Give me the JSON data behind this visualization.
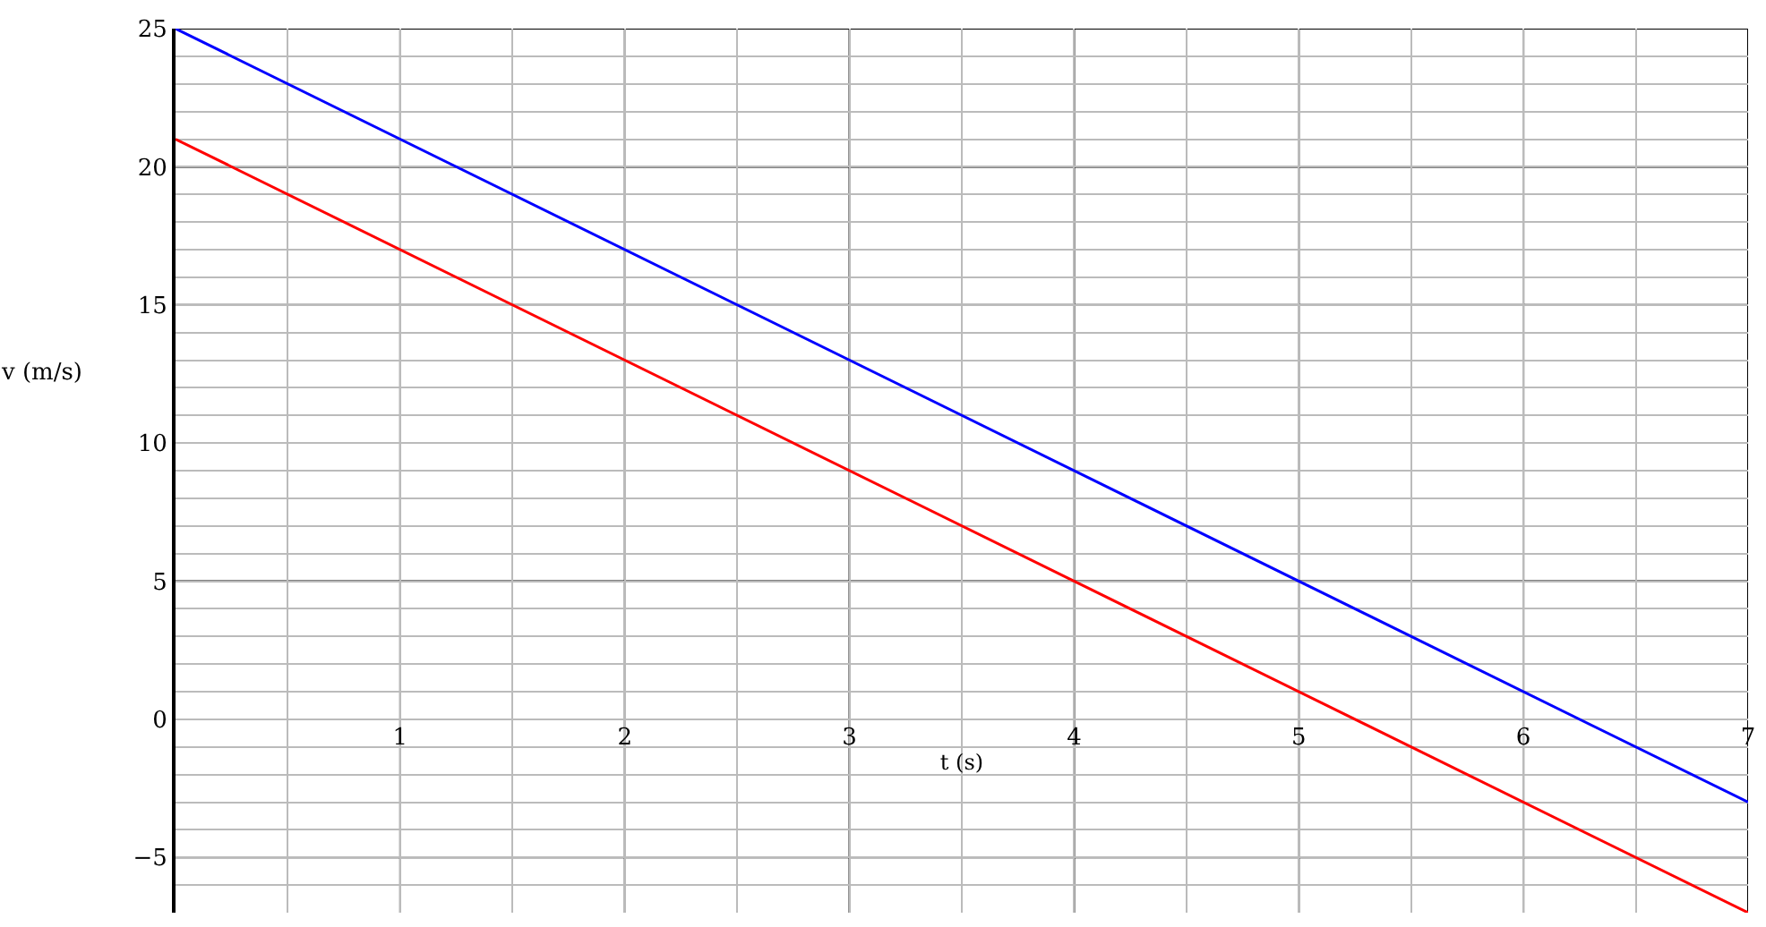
{
  "chart_data": {
    "type": "line",
    "xlabel": "t (s)",
    "ylabel": "v (m/s)",
    "x": [
      0,
      7
    ],
    "series": [
      {
        "color": "#0000ff",
        "values": [
          25,
          -3
        ]
      },
      {
        "color": "#ff0000",
        "values": [
          21,
          -7
        ]
      }
    ],
    "xlim": [
      0,
      7
    ],
    "ylim": [
      -7,
      25
    ],
    "xticks": [
      {
        "value": 0.5,
        "label": null
      },
      1,
      {
        "value": 1.5,
        "label": null
      },
      2,
      {
        "value": 2.5,
        "label": null
      },
      3,
      {
        "value": 3.5,
        "label": null
      },
      4,
      {
        "value": 4.5,
        "label": null
      },
      5,
      {
        "value": 5.5,
        "label": null
      },
      6,
      {
        "value": 6.5,
        "label": null
      },
      7
    ],
    "yticks": [
      {
        "value": -6,
        "label": null
      },
      {
        "value": -5,
        "label": "−5"
      },
      {
        "value": -4,
        "label": null
      },
      {
        "value": -3,
        "label": null
      },
      {
        "value": -2,
        "label": null
      },
      {
        "value": -1,
        "label": null
      },
      0,
      {
        "value": 1,
        "label": null
      },
      {
        "value": 2,
        "label": null
      },
      {
        "value": 3,
        "label": null
      },
      {
        "value": 4,
        "label": null
      },
      5,
      {
        "value": 6,
        "label": null
      },
      {
        "value": 7,
        "label": null
      },
      {
        "value": 8,
        "label": null
      },
      {
        "value": 9,
        "label": null
      },
      10,
      {
        "value": 11,
        "label": null
      },
      {
        "value": 12,
        "label": null
      },
      {
        "value": 13,
        "label": null
      },
      {
        "value": 14,
        "label": null
      },
      15,
      {
        "value": 16,
        "label": null
      },
      {
        "value": 17,
        "label": null
      },
      {
        "value": 18,
        "label": null
      },
      {
        "value": 19,
        "label": null
      },
      20,
      {
        "value": 21,
        "label": null
      },
      {
        "value": 22,
        "label": null
      },
      {
        "value": 23,
        "label": null
      },
      {
        "value": 24,
        "label": null
      },
      25
    ],
    "grid": true,
    "line_style": "solid",
    "marker": "none"
  }
}
